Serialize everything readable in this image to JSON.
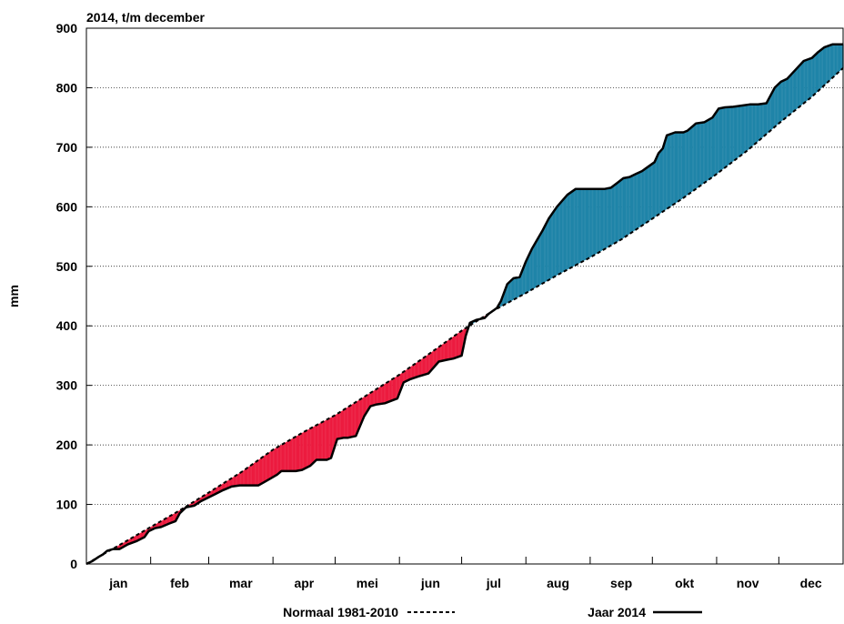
{
  "chart_data": {
    "type": "area",
    "title": "2014, t/m december",
    "xlabel": "",
    "ylabel": "mm",
    "ylim": [
      0,
      900
    ],
    "xlim": [
      0,
      365
    ],
    "yticks": [
      0,
      100,
      200,
      300,
      400,
      500,
      600,
      700,
      800,
      900
    ],
    "months": [
      "jan",
      "feb",
      "mar",
      "apr",
      "mei",
      "jun",
      "jul",
      "aug",
      "sep",
      "okt",
      "nov",
      "dec"
    ],
    "grid": true,
    "legend_position": "bottom",
    "colors": {
      "above_normal_fill": "#1f84a8",
      "below_normal_fill": "#ec1b3f",
      "line": "#000000"
    },
    "series": [
      {
        "name": "Normaal 1981-2010",
        "style": "dashed",
        "x": [
          0,
          15,
          31,
          45,
          59,
          75,
          90,
          105,
          120,
          135,
          151,
          165,
          181,
          196,
          212,
          227,
          243,
          258,
          273,
          288,
          304,
          319,
          334,
          350,
          365
        ],
        "y": [
          0,
          30,
          62,
          90,
          120,
          155,
          192,
          222,
          250,
          283,
          318,
          352,
          392,
          425,
          455,
          485,
          515,
          545,
          580,
          615,
          655,
          695,
          740,
          785,
          833
        ]
      },
      {
        "name": "Jaar 2014",
        "style": "solid",
        "x": [
          0,
          3,
          6,
          8,
          10,
          13,
          16,
          20,
          24,
          28,
          30,
          33,
          36,
          40,
          43,
          45,
          48,
          52,
          55,
          59,
          62,
          66,
          70,
          74,
          78,
          79,
          83,
          87,
          92,
          94,
          98,
          101,
          104,
          108,
          111,
          114,
          116,
          118,
          121,
          124,
          126,
          130,
          134,
          137,
          140,
          144,
          150,
          153,
          156,
          160,
          165,
          170,
          174,
          177,
          181,
          183,
          185,
          188,
          192,
          194,
          198,
          200,
          203,
          206,
          209,
          212,
          215,
          218,
          220,
          223,
          227,
          232,
          236,
          240,
          244,
          248,
          250,
          253,
          256,
          259,
          262,
          265,
          268,
          270,
          274,
          276,
          278,
          280,
          284,
          288,
          290,
          294,
          298,
          302,
          305,
          308,
          312,
          316,
          320,
          324,
          328,
          332,
          335,
          338,
          342,
          346,
          350,
          353,
          356,
          360,
          363,
          365
        ],
        "y": [
          0,
          5,
          12,
          16,
          22,
          25,
          25,
          33,
          38,
          45,
          55,
          60,
          62,
          68,
          72,
          85,
          95,
          98,
          105,
          112,
          117,
          124,
          130,
          132,
          132,
          132,
          132,
          140,
          150,
          156,
          156,
          156,
          158,
          165,
          175,
          175,
          175,
          178,
          210,
          212,
          212,
          215,
          248,
          265,
          268,
          270,
          278,
          305,
          310,
          315,
          320,
          340,
          343,
          345,
          350,
          383,
          405,
          410,
          413,
          420,
          430,
          442,
          470,
          480,
          482,
          508,
          530,
          548,
          560,
          580,
          600,
          620,
          630,
          630,
          630,
          630,
          630,
          632,
          640,
          648,
          650,
          655,
          660,
          665,
          675,
          690,
          698,
          720,
          725,
          725,
          728,
          740,
          742,
          750,
          765,
          767,
          768,
          770,
          772,
          772,
          774,
          800,
          810,
          815,
          830,
          845,
          850,
          860,
          868,
          873,
          873,
          873
        ]
      }
    ]
  }
}
